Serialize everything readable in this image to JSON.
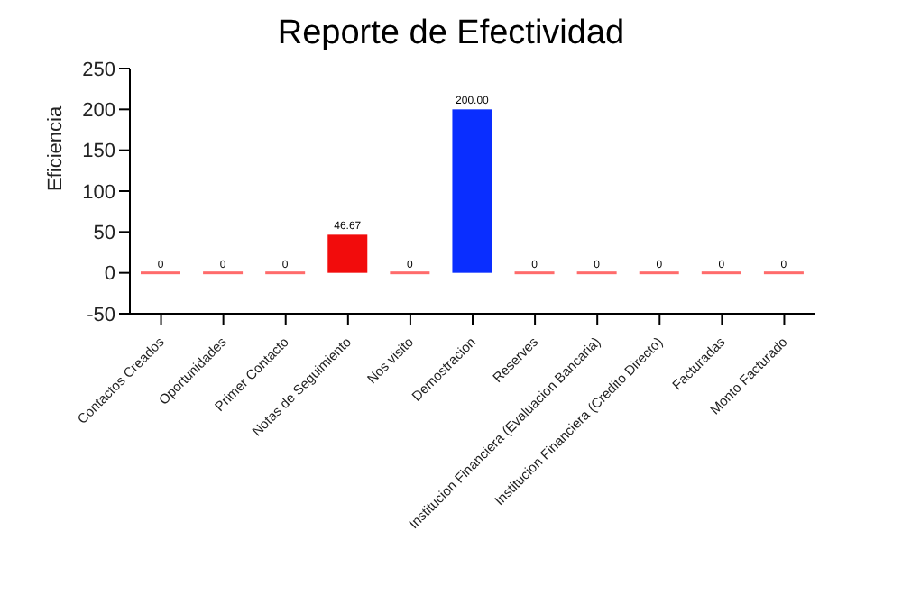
{
  "chart_data": {
    "type": "bar",
    "title": "Reporte de Efectividad",
    "ylabel": "Eficiencia",
    "categories": [
      "Contactos Creados",
      "Oportunidades",
      "Primer Contacto",
      "Notas de Seguimiento",
      "Nos visito",
      "Demostracion",
      "Reserves",
      "Institucion Financiera (Evaluacion Bancaria)",
      "Institucion Financiera (Credito Directo)",
      "Facturadas",
      "Monto Facturado"
    ],
    "values": [
      0,
      0,
      0,
      46.67,
      0,
      200,
      0,
      0,
      0,
      0,
      0
    ],
    "colors": [
      "#ff6b6b",
      "#ff6b6b",
      "#ff6b6b",
      "#f20c0c",
      "#ff6b6b",
      "#0a2eff",
      "#ff6b6b",
      "#ff6b6b",
      "#ff6b6b",
      "#ff6b6b",
      "#ff6b6b"
    ],
    "value_labels": [
      "0",
      "0",
      "0",
      "46.67",
      "0",
      "200.00",
      "0",
      "0",
      "0",
      "0",
      "0"
    ],
    "ylim": [
      -50,
      250
    ],
    "yticks": [
      -50,
      0,
      50,
      100,
      150,
      200,
      250
    ],
    "grid": false
  }
}
